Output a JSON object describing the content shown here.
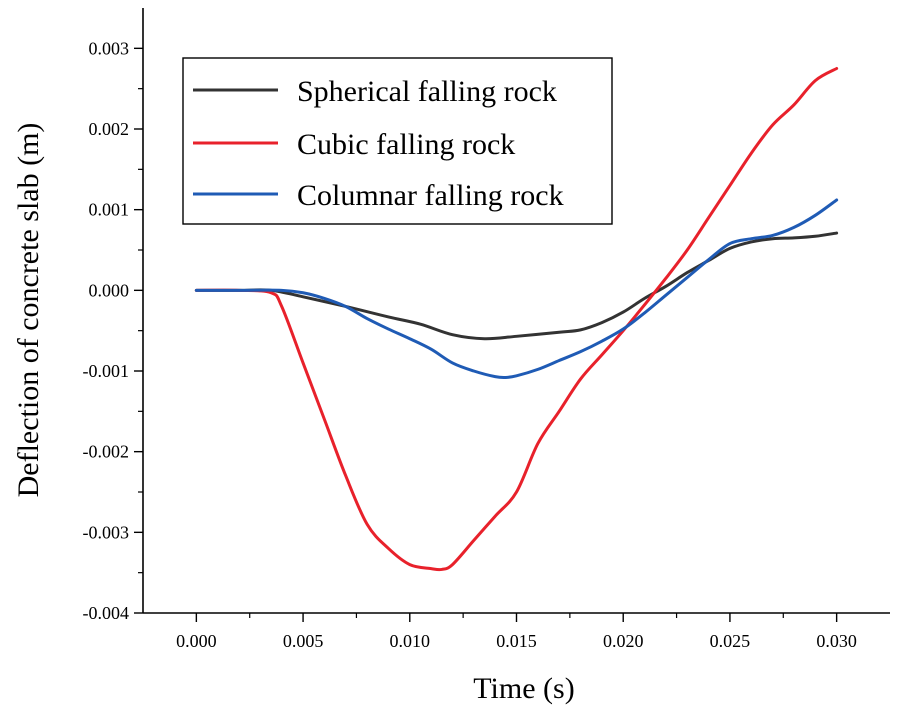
{
  "chart_data": {
    "type": "line",
    "title": "",
    "xlabel": "Time (s)",
    "ylabel": "Deflection of concrete slab (m)",
    "xlim": [
      -0.0025,
      0.0325
    ],
    "ylim": [
      -0.004,
      0.0035
    ],
    "x_ticks": [
      0.0,
      0.005,
      0.01,
      0.015,
      0.02,
      0.025,
      0.03
    ],
    "x_tick_labels": [
      "0.000",
      "0.005",
      "0.010",
      "0.015",
      "0.020",
      "0.025",
      "0.030"
    ],
    "y_ticks": [
      -0.004,
      -0.003,
      -0.002,
      -0.001,
      0.0,
      0.001,
      0.002,
      0.003
    ],
    "y_tick_labels": [
      "-0.004",
      "-0.003",
      "-0.002",
      "-0.001",
      "0.000",
      "0.001",
      "0.002",
      "0.003"
    ],
    "grid": false,
    "legend_position": "top-left",
    "series": [
      {
        "name": "Spherical falling rock",
        "color": "#333333",
        "x": [
          0.0,
          0.002,
          0.0035,
          0.005,
          0.007,
          0.009,
          0.0105,
          0.012,
          0.0135,
          0.015,
          0.017,
          0.018,
          0.019,
          0.02,
          0.021,
          0.022,
          0.023,
          0.024,
          0.025,
          0.026,
          0.027,
          0.028,
          0.029,
          0.03
        ],
        "y": [
          0.0,
          0.0,
          0.0,
          -8e-05,
          -0.0002,
          -0.00033,
          -0.00042,
          -0.00055,
          -0.0006,
          -0.00057,
          -0.00052,
          -0.00049,
          -0.0004,
          -0.00027,
          -0.0001,
          5e-05,
          0.00022,
          0.00037,
          0.00052,
          0.0006,
          0.00064,
          0.00065,
          0.00067,
          0.00071
        ]
      },
      {
        "name": "Cubic falling rock",
        "color": "#e8212b",
        "x": [
          0.0,
          0.002,
          0.0035,
          0.004,
          0.005,
          0.006,
          0.007,
          0.008,
          0.009,
          0.01,
          0.011,
          0.0115,
          0.012,
          0.013,
          0.014,
          0.015,
          0.016,
          0.017,
          0.018,
          0.019,
          0.02,
          0.021,
          0.022,
          0.023,
          0.024,
          0.025,
          0.026,
          0.027,
          0.028,
          0.029,
          0.03
        ],
        "y": [
          0.0,
          0.0,
          -3e-05,
          -0.0002,
          -0.0009,
          -0.0016,
          -0.0023,
          -0.0029,
          -0.0032,
          -0.0034,
          -0.00345,
          -0.00346,
          -0.0034,
          -0.0031,
          -0.0028,
          -0.0025,
          -0.0019,
          -0.0015,
          -0.0011,
          -0.0008,
          -0.0005,
          -0.00018,
          0.00015,
          0.0005,
          0.0009,
          0.0013,
          0.0017,
          0.00205,
          0.0023,
          0.0026,
          0.00275
        ]
      },
      {
        "name": "Columnar falling rock",
        "color": "#1f5bb5",
        "x": [
          0.0,
          0.002,
          0.004,
          0.005,
          0.006,
          0.007,
          0.008,
          0.009,
          0.01,
          0.011,
          0.012,
          0.013,
          0.014,
          0.0145,
          0.015,
          0.016,
          0.017,
          0.018,
          0.019,
          0.02,
          0.021,
          0.022,
          0.023,
          0.024,
          0.025,
          0.026,
          0.027,
          0.028,
          0.029,
          0.03
        ],
        "y": [
          0.0,
          0.0,
          0.0,
          -3e-05,
          -0.0001,
          -0.0002,
          -0.00035,
          -0.00048,
          -0.0006,
          -0.00073,
          -0.0009,
          -0.001,
          -0.00107,
          -0.00108,
          -0.00106,
          -0.00098,
          -0.00087,
          -0.00076,
          -0.00063,
          -0.00048,
          -0.00028,
          -6e-05,
          0.00016,
          0.00038,
          0.00058,
          0.00064,
          0.00068,
          0.00078,
          0.00093,
          0.00112
        ]
      }
    ]
  }
}
